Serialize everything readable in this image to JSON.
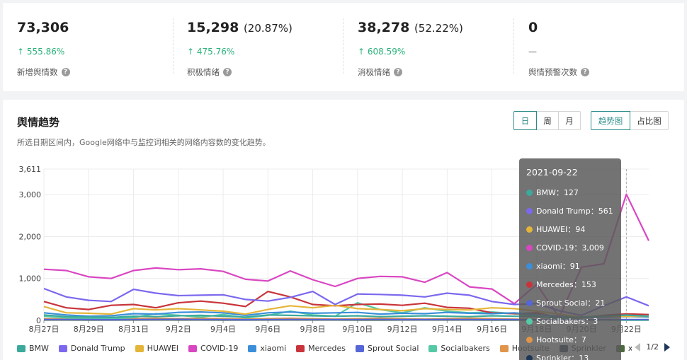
{
  "stats": [
    {
      "value": "73,306",
      "pct": "",
      "change": "↑ 555.86%",
      "label": "新增舆情数"
    },
    {
      "value": "15,298",
      "pct": "(20.87%)",
      "change": "↑ 475.76%",
      "label": "积极情绪"
    },
    {
      "value": "38,278",
      "pct": "(52.22%)",
      "change": "↑ 608.59%",
      "label": "消极情绪"
    },
    {
      "value": "0",
      "pct": "",
      "change": "—",
      "label": "舆情预警次数"
    }
  ],
  "trend": {
    "title": "舆情趋势",
    "subtitle": "所选日期区间内，Google网络中与监控词相关的网络内容数的变化趋势。",
    "period_buttons": [
      "日",
      "周",
      "月"
    ],
    "view_buttons": [
      "趋势图",
      "占比图"
    ],
    "pager": "1/2"
  },
  "tooltip": {
    "date": "2021-09-22",
    "rows": [
      {
        "name": "BMW",
        "value": "127"
      },
      {
        "name": "Donald Trump",
        "value": "561"
      },
      {
        "name": "HUAWEI",
        "value": "94"
      },
      {
        "name": "COVID-19",
        "value": "3,009"
      },
      {
        "name": "xiaomi",
        "value": "91"
      },
      {
        "name": "Mercedes",
        "value": "153"
      },
      {
        "name": "Sprout Social",
        "value": "21"
      },
      {
        "name": "Socialbakers",
        "value": "3"
      },
      {
        "name": "Hootsuite",
        "value": "7"
      },
      {
        "name": "Sprinkler",
        "value": "13"
      }
    ]
  },
  "colors": {
    "accent": "#2d8c8a",
    "up": "#2ab27b"
  },
  "chart_data": {
    "type": "line",
    "ylim": [
      0,
      3611
    ],
    "y_ticks": [
      "0",
      "1,000",
      "2,000",
      "3,000",
      "3,611"
    ],
    "y_tick_values": [
      0,
      1000,
      2000,
      3000,
      3611
    ],
    "x": [
      "8/27",
      "8/28",
      "8/29",
      "8/30",
      "8/31",
      "9/1",
      "9/2",
      "9/3",
      "9/4",
      "9/5",
      "9/6",
      "9/7",
      "9/8",
      "9/9",
      "9/10",
      "9/11",
      "9/12",
      "9/13",
      "9/14",
      "9/15",
      "9/16",
      "9/17",
      "9/18",
      "9/19",
      "9/20",
      "9/21",
      "9/22",
      "9/23"
    ],
    "x_tick_labels": [
      "8月27日",
      "8月29日",
      "8月31日",
      "9月2日",
      "9月4日",
      "9月6日",
      "9月8日",
      "9月10日",
      "9月12日",
      "9月14日",
      "9月16日",
      "9月18日",
      "9月20日",
      "9月22日"
    ],
    "series": [
      {
        "name": "BMW",
        "color": "#3ba99c",
        "values": [
          130,
          90,
          80,
          70,
          100,
          90,
          110,
          120,
          100,
          80,
          130,
          120,
          110,
          100,
          110,
          90,
          100,
          110,
          100,
          90,
          110,
          100,
          90,
          60,
          80,
          100,
          127,
          100
        ]
      },
      {
        "name": "Donald Trump",
        "color": "#7b68ee",
        "values": [
          760,
          560,
          480,
          450,
          740,
          650,
          590,
          600,
          610,
          500,
          460,
          550,
          690,
          380,
          630,
          620,
          600,
          560,
          650,
          600,
          450,
          380,
          400,
          230,
          120,
          350,
          561,
          350
        ]
      },
      {
        "name": "HUAWEI",
        "color": "#e5b53a",
        "values": [
          330,
          180,
          170,
          150,
          280,
          250,
          280,
          250,
          220,
          150,
          260,
          350,
          300,
          360,
          280,
          260,
          230,
          280,
          260,
          250,
          300,
          280,
          220,
          150,
          80,
          100,
          94,
          100
        ]
      },
      {
        "name": "COVID-19",
        "color": "#d946c2",
        "values": [
          1220,
          1190,
          1040,
          1000,
          1190,
          1250,
          1210,
          1230,
          1170,
          980,
          940,
          1180,
          970,
          810,
          1000,
          1050,
          1040,
          910,
          1140,
          800,
          750,
          400,
          860,
          70,
          1270,
          1350,
          3009,
          1900
        ]
      },
      {
        "name": "xiaomi",
        "color": "#3b8fd9",
        "values": [
          180,
          130,
          100,
          110,
          160,
          150,
          190,
          200,
          180,
          120,
          180,
          200,
          170,
          180,
          190,
          150,
          170,
          160,
          190,
          170,
          160,
          180,
          140,
          100,
          70,
          80,
          91,
          80
        ]
      },
      {
        "name": "Mercedes",
        "color": "#c8343a",
        "values": [
          450,
          300,
          260,
          360,
          380,
          300,
          420,
          460,
          410,
          330,
          690,
          560,
          380,
          350,
          380,
          390,
          360,
          410,
          310,
          290,
          180,
          160,
          180,
          70,
          60,
          120,
          153,
          140
        ]
      },
      {
        "name": "Sprout Social",
        "color": "#5566d6",
        "values": [
          20,
          20,
          18,
          15,
          20,
          22,
          25,
          20,
          18,
          15,
          20,
          22,
          20,
          18,
          20,
          22,
          18,
          20,
          22,
          20,
          18,
          20,
          15,
          10,
          12,
          18,
          21,
          20
        ]
      },
      {
        "name": "Socialbakers",
        "color": "#55c9a6",
        "values": [
          100,
          60,
          50,
          40,
          70,
          160,
          120,
          80,
          140,
          60,
          120,
          220,
          130,
          100,
          420,
          260,
          180,
          300,
          220,
          180,
          200,
          160,
          100,
          40,
          20,
          10,
          3,
          5
        ]
      },
      {
        "name": "Hootsuite",
        "color": "#e0954a",
        "values": [
          40,
          30,
          30,
          20,
          40,
          50,
          40,
          50,
          40,
          30,
          40,
          50,
          40,
          30,
          40,
          50,
          40,
          30,
          40,
          50,
          40,
          30,
          20,
          10,
          10,
          8,
          7,
          8
        ]
      },
      {
        "name": "Sprinkler",
        "color": "#1d3557",
        "values": [
          30,
          25,
          20,
          20,
          25,
          30,
          25,
          30,
          25,
          20,
          25,
          30,
          25,
          20,
          25,
          30,
          25,
          20,
          25,
          30,
          25,
          20,
          15,
          10,
          12,
          14,
          13,
          12
        ]
      },
      {
        "name": "x",
        "color": "#4c6b3c",
        "values": [
          10,
          10,
          8,
          8,
          10,
          12,
          10,
          10,
          8,
          8,
          10,
          12,
          10,
          10,
          8,
          8,
          10,
          12,
          10,
          10,
          8,
          8,
          10,
          12,
          10,
          10,
          8,
          8
        ]
      }
    ]
  }
}
